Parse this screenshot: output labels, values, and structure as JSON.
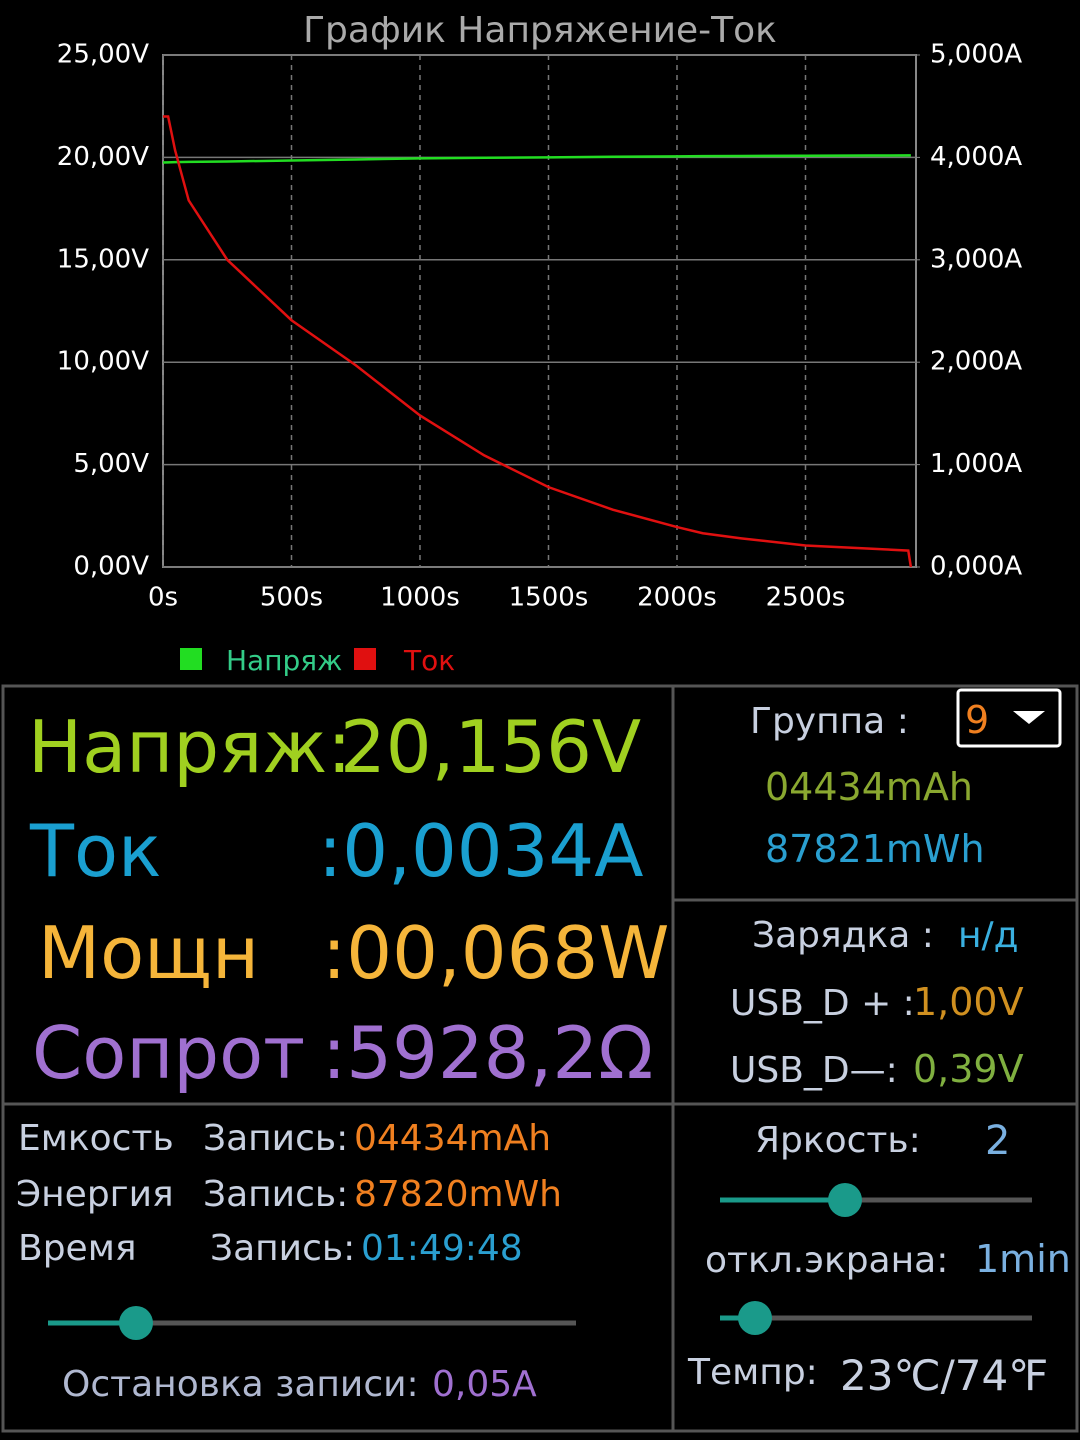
{
  "chart_data": {
    "type": "line",
    "title": "График Напряжение-Ток",
    "x": [
      0,
      20,
      47,
      100,
      250,
      500,
      750,
      1000,
      1250,
      1500,
      1750,
      2000,
      2100,
      2250,
      2500,
      2750,
      2900,
      2910
    ],
    "xlim": [
      0,
      2930
    ],
    "xticks": [
      {
        "value": 0,
        "label": "0s"
      },
      {
        "value": 500,
        "label": "500s"
      },
      {
        "value": 1000,
        "label": "1000s"
      },
      {
        "value": 1500,
        "label": "1500s"
      },
      {
        "value": 2000,
        "label": "2000s"
      },
      {
        "value": 2500,
        "label": "2500s"
      }
    ],
    "ylim": [
      0,
      25
    ],
    "yticks": [
      {
        "value": 0,
        "label": "0,00V"
      },
      {
        "value": 5,
        "label": "5,00V"
      },
      {
        "value": 10,
        "label": "10,00V"
      },
      {
        "value": 15,
        "label": "15,00V"
      },
      {
        "value": 20,
        "label": "20,00V"
      },
      {
        "value": 25,
        "label": "25,00V"
      }
    ],
    "y2lim": [
      0,
      5
    ],
    "y2ticks": [
      {
        "value": 0,
        "label": "0,000A"
      },
      {
        "value": 1,
        "label": "1,000A"
      },
      {
        "value": 2,
        "label": "2,000A"
      },
      {
        "value": 3,
        "label": "3,000A"
      },
      {
        "value": 4,
        "label": "4,000A"
      },
      {
        "value": 5,
        "label": "5,000A"
      }
    ],
    "grid": true,
    "series": [
      {
        "name": "Напряж",
        "color": "#22dd22",
        "values": [
          19.75,
          19.76,
          19.77,
          19.78,
          19.8,
          19.85,
          19.9,
          19.95,
          19.98,
          20.0,
          20.03,
          20.05,
          20.06,
          20.07,
          20.08,
          20.09,
          20.1,
          20.1
        ]
      },
      {
        "name": "Ток",
        "color": "#e01010",
        "axis": "y2",
        "values": [
          4.4,
          4.4,
          4.07,
          3.58,
          3.0,
          2.41,
          1.97,
          1.48,
          1.09,
          0.78,
          0.56,
          0.39,
          0.33,
          0.28,
          0.21,
          0.18,
          0.16,
          0.0
        ]
      }
    ]
  },
  "readings": [
    {
      "label": "Напряж:",
      "value": "20,156V"
    },
    {
      "label": "Ток",
      "value": ":0,0034A"
    },
    {
      "label": "Мощн",
      "value": ":00,068W"
    },
    {
      "label": "Сопрот",
      "value": ":5928,2Ω"
    }
  ],
  "group": {
    "label": "Группа :",
    "value": "9",
    "capacity": "04434mAh",
    "energy": "87821mWh"
  },
  "charging": {
    "label": "Зарядка :",
    "value": "н/д",
    "dplus_label": "USB_D + :",
    "dplus": "1,00V",
    "dminus_label": "USB_D—:",
    "dminus": "0,39V"
  },
  "records": [
    [
      "Емкость",
      "Запись:",
      "04434mAh"
    ],
    [
      "Энергия",
      "Запись:",
      "87820mWh"
    ],
    [
      "Время",
      "Запись:",
      "01:49:48"
    ]
  ],
  "stop": {
    "label": "Остановка записи:",
    "value": "0,05A"
  },
  "brightness": {
    "label": "Яркость:",
    "value": "2"
  },
  "screen_off": {
    "label": "откл.экрана:",
    "value": "1min"
  },
  "temp": {
    "label": "Темпр:",
    "value": "23℃/74℉"
  }
}
